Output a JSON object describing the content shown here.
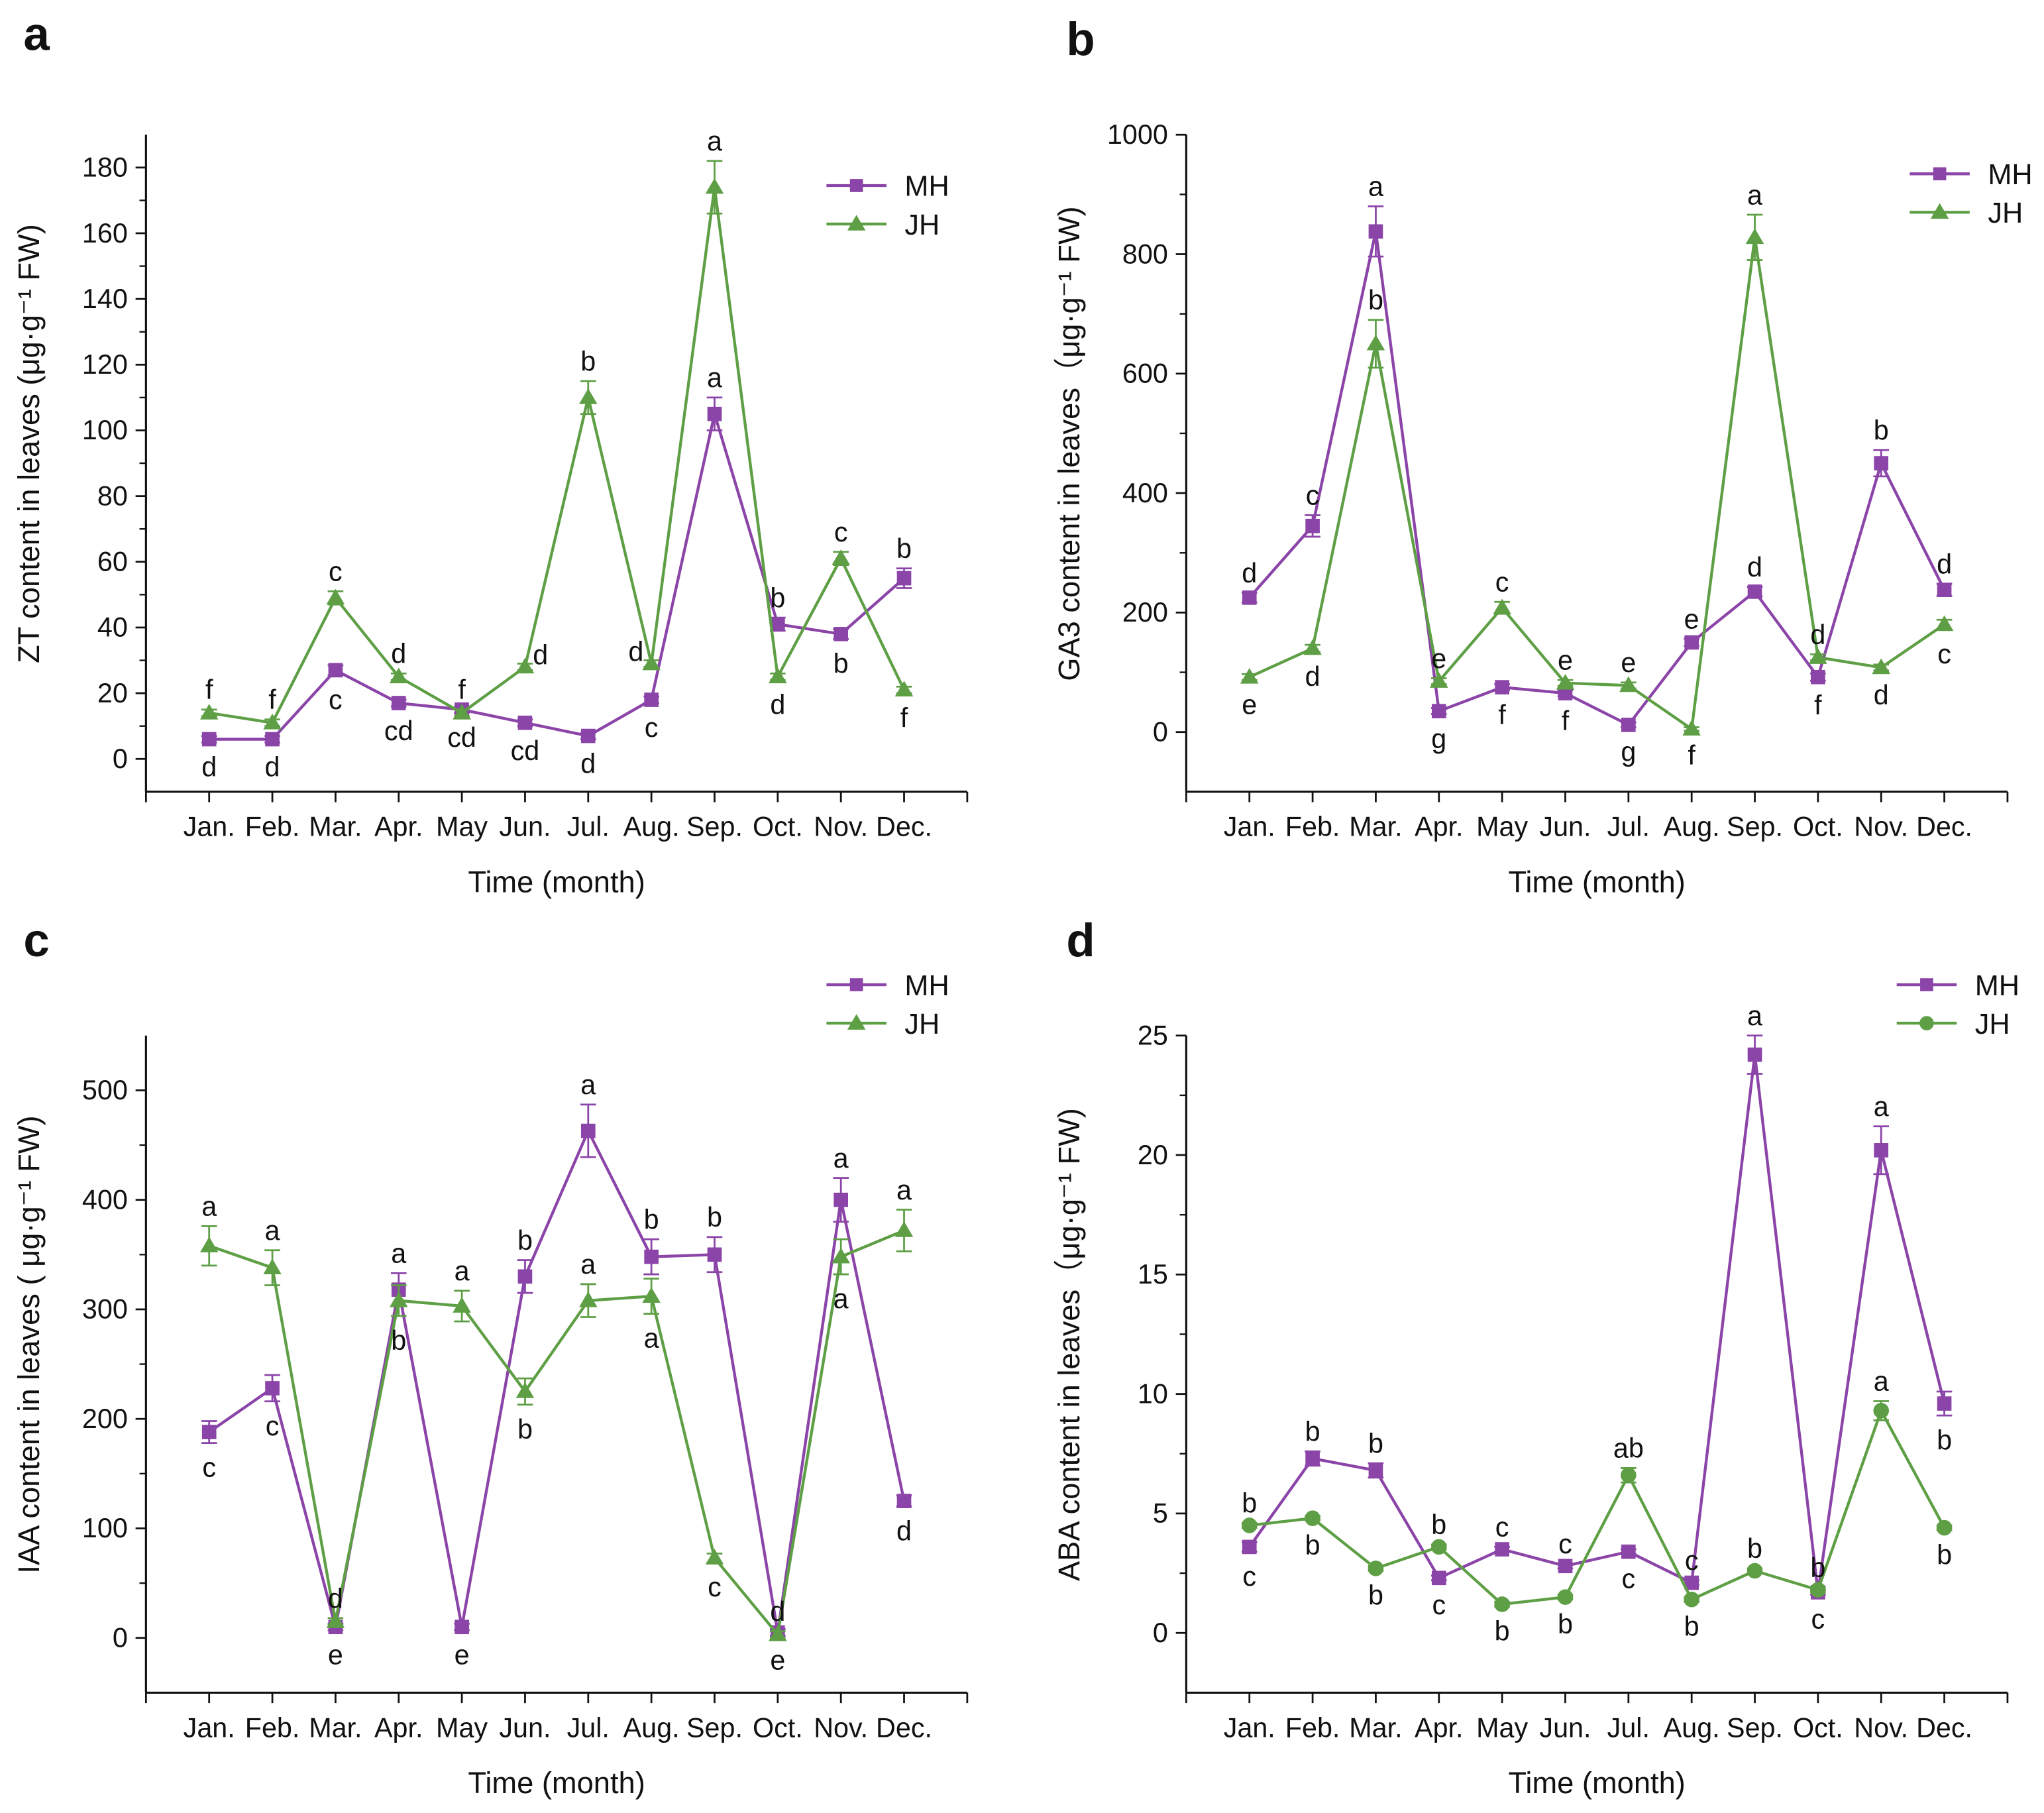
{
  "colors": {
    "MH": "#8B44A8",
    "JH": "#5E9F45"
  },
  "chart_data": [
    {
      "panel": "a",
      "type": "line",
      "categories": [
        "Jan.",
        "Feb.",
        "Mar.",
        "Apr.",
        "May",
        "Jun.",
        "Jul.",
        "Aug.",
        "Sep.",
        "Oct.",
        "Nov.",
        "Dec."
      ],
      "xlabel": "Time (month)",
      "ylabel": "ZT content in leaves (μg·g⁻¹ FW)",
      "ylim": [
        -10,
        190
      ],
      "yticks": [
        0,
        20,
        40,
        60,
        80,
        100,
        120,
        140,
        160,
        180
      ],
      "legend": "top-right",
      "series": [
        {
          "name": "MH",
          "marker": "square",
          "values": [
            6,
            6,
            27,
            17,
            15,
            11,
            7,
            18,
            105,
            41,
            38,
            55
          ],
          "errors": [
            1,
            1,
            1.5,
            1,
            1,
            1,
            1,
            1,
            5,
            2,
            1.5,
            3
          ],
          "letters": [
            "d",
            "d",
            "c",
            "cd",
            "cd",
            "cd",
            "d",
            "c",
            "a",
            "b",
            "b",
            "b"
          ],
          "letter_pos": [
            "below",
            "below",
            "below",
            "below",
            "below",
            "below",
            "below",
            "below",
            "above",
            "above",
            "below",
            "above"
          ]
        },
        {
          "name": "JH",
          "marker": "triangle",
          "values": [
            14,
            11,
            49,
            25,
            14,
            28,
            110,
            29,
            174,
            25,
            61,
            21
          ],
          "errors": [
            1,
            1,
            2,
            1,
            1,
            1,
            5,
            1,
            8,
            1,
            2,
            1
          ],
          "letters": [
            "f",
            "f",
            "c",
            "d",
            "f",
            "d",
            "b",
            "d",
            "a",
            "d",
            "c",
            "f"
          ],
          "letter_pos": [
            "above",
            "above",
            "above",
            "above",
            "above",
            "right",
            "above",
            "left",
            "above",
            "below",
            "above",
            "below"
          ]
        }
      ]
    },
    {
      "panel": "b",
      "type": "line",
      "categories": [
        "Jan.",
        "Feb.",
        "Mar.",
        "Apr.",
        "May",
        "Jun.",
        "Jul.",
        "Aug.",
        "Sep.",
        "Oct.",
        "Nov.",
        "Dec."
      ],
      "xlabel": "Time (month)",
      "ylabel": "GA3 content in leaves（μg·g⁻¹ FW)",
      "ylim": [
        -100,
        1000
      ],
      "yticks": [
        0,
        200,
        400,
        600,
        800,
        1000
      ],
      "legend": "top-right",
      "series": [
        {
          "name": "MH",
          "marker": "square",
          "values": [
            225,
            345,
            838,
            35,
            75,
            65,
            12,
            150,
            235,
            92,
            450,
            238
          ],
          "errors": [
            8,
            18,
            42,
            5,
            5,
            5,
            4,
            6,
            8,
            6,
            22,
            10
          ],
          "letters": [
            "d",
            "c",
            "a",
            "g",
            "f",
            "f",
            "g",
            "e",
            "d",
            "f",
            "b",
            "d"
          ],
          "letter_pos": [
            "above",
            "above",
            "above",
            "below",
            "below",
            "below",
            "below",
            "above",
            "above",
            "below",
            "above",
            "above"
          ]
        },
        {
          "name": "JH",
          "marker": "triangle",
          "values": [
            92,
            140,
            650,
            85,
            208,
            82,
            78,
            5,
            828,
            125,
            108,
            180
          ],
          "errors": [
            5,
            6,
            40,
            5,
            10,
            5,
            5,
            3,
            38,
            5,
            5,
            8
          ],
          "letters": [
            "e",
            "d",
            "b",
            "e",
            "c",
            "e",
            "e",
            "f",
            "a",
            "d",
            "d",
            "c"
          ],
          "letter_pos": [
            "below",
            "below",
            "above",
            "above",
            "above",
            "above",
            "above",
            "below",
            "above",
            "above",
            "below",
            "below"
          ]
        }
      ]
    },
    {
      "panel": "c",
      "type": "line",
      "categories": [
        "Jan.",
        "Feb.",
        "Mar.",
        "Apr.",
        "May",
        "Jun.",
        "Jul.",
        "Aug.",
        "Sep.",
        "Oct.",
        "Nov.",
        "Dec."
      ],
      "xlabel": "Time (month)",
      "ylabel": "IAA content in leaves ( μg·g⁻¹ FW)",
      "ylim": [
        -50,
        550
      ],
      "yticks": [
        0,
        100,
        200,
        300,
        400,
        500
      ],
      "legend": "top-right",
      "series": [
        {
          "name": "MH",
          "marker": "square",
          "values": [
            188,
            228,
            10,
            318,
            10,
            330,
            463,
            348,
            350,
            5,
            400,
            125
          ],
          "errors": [
            10,
            12,
            3,
            15,
            3,
            15,
            24,
            16,
            16,
            3,
            20,
            5
          ],
          "letters": [
            "c",
            "c",
            "e",
            "a",
            "e",
            "b",
            "a",
            "b",
            "b",
            "e",
            "a",
            "d"
          ],
          "letter_pos": [
            "below",
            "below",
            "below",
            "above",
            "below",
            "above",
            "above",
            "above",
            "above",
            "below",
            "above",
            "below"
          ]
        },
        {
          "name": "JH",
          "marker": "triangle",
          "values": [
            358,
            338,
            15,
            308,
            303,
            225,
            308,
            312,
            73,
            3,
            348,
            372
          ],
          "errors": [
            18,
            16,
            3,
            14,
            14,
            12,
            15,
            16,
            4,
            3,
            16,
            19
          ],
          "letters": [
            "a",
            "a",
            "d",
            "b",
            "a",
            "b",
            "a",
            "a",
            "c",
            "d",
            "a",
            "a"
          ],
          "letter_pos": [
            "above",
            "above",
            "above",
            "below",
            "above",
            "below",
            "above",
            "below",
            "below",
            "above",
            "below",
            "above"
          ]
        }
      ]
    },
    {
      "panel": "d",
      "type": "line",
      "categories": [
        "Jan.",
        "Feb.",
        "Mar.",
        "Apr.",
        "May",
        "Jun.",
        "Jul.",
        "Aug.",
        "Sep.",
        "Oct.",
        "Nov.",
        "Dec."
      ],
      "xlabel": "Time (month)",
      "ylabel": "ABA content in leaves（μg·g⁻¹ FW)",
      "ylim": [
        -2.5,
        25
      ],
      "yticks": [
        0,
        5,
        10,
        15,
        20,
        25
      ],
      "legend": "top-right",
      "series": [
        {
          "name": "MH",
          "marker": "square",
          "values": [
            3.6,
            7.3,
            6.8,
            2.3,
            3.5,
            2.8,
            3.4,
            2.1,
            24.2,
            1.7,
            20.2,
            9.6
          ],
          "errors": [
            0.2,
            0.3,
            0.3,
            0.1,
            0.1,
            0.1,
            0.1,
            0.1,
            0.8,
            0.1,
            1.0,
            0.5
          ],
          "letters": [
            "c",
            "b",
            "b",
            "c",
            "c",
            "c",
            "c",
            "c",
            "a",
            "c",
            "a",
            "b"
          ],
          "letter_pos": [
            "below",
            "above",
            "above",
            "below",
            "above",
            "above",
            "below",
            "above",
            "above",
            "below",
            "above",
            "below"
          ]
        },
        {
          "name": "JH",
          "marker": "circle",
          "values": [
            4.5,
            4.8,
            2.7,
            3.6,
            1.2,
            1.5,
            6.6,
            1.4,
            2.6,
            1.8,
            9.3,
            4.4
          ],
          "errors": [
            0.1,
            0.1,
            0.1,
            0.1,
            0.1,
            0.1,
            0.3,
            0.1,
            0.1,
            0.1,
            0.4,
            0.1
          ],
          "letters": [
            "b",
            "b",
            "b",
            "b",
            "b",
            "b",
            "ab",
            "b",
            "b",
            "b",
            "a",
            "b"
          ],
          "letter_pos": [
            "above",
            "below",
            "below",
            "above",
            "below",
            "below",
            "above",
            "below",
            "above",
            "above",
            "above",
            "below"
          ]
        }
      ]
    }
  ]
}
